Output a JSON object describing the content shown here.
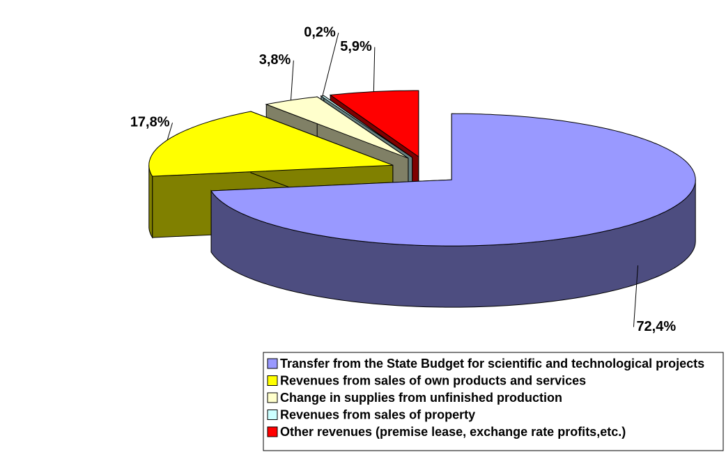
{
  "chart_data": {
    "type": "pie",
    "categories": [
      "Transfer from the State Budget for scientific and technological projects",
      "Revenues from sales of own products and services",
      "Change in supplies from unfinished production",
      "Revenues from sales of property",
      "Other revenues (premise lease, exchange rate profits,etc.)"
    ],
    "values": [
      72.4,
      17.8,
      3.8,
      0.2,
      5.9
    ],
    "value_labels": [
      "72,4%",
      "17,8%",
      "3,8%",
      "0,2%",
      "5,9%"
    ],
    "colors": [
      "#9999ff",
      "#ffff00",
      "#ffffcc",
      "#ccffff",
      "#ff0000"
    ]
  }
}
